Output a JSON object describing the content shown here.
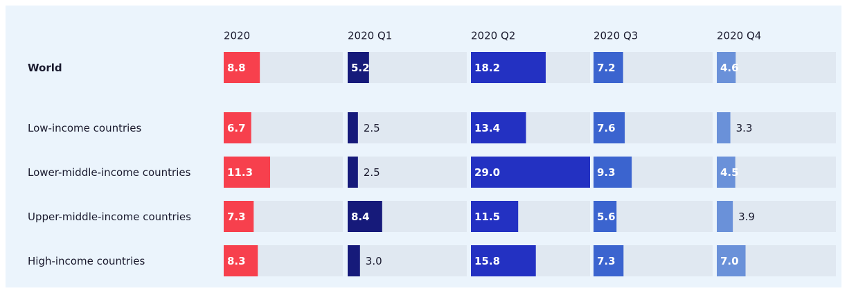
{
  "chart_data": {
    "type": "bar",
    "categories": [
      "World",
      "Low-income countries",
      "Lower-middle-income countries",
      "Upper-middle-income countries",
      "High-income countries"
    ],
    "xlim": [
      0,
      29
    ],
    "series": [
      {
        "name": "2020",
        "color": "#f7404d",
        "values": [
          8.8,
          6.7,
          11.3,
          7.3,
          8.3
        ],
        "value_labels": [
          "8.8",
          "6.7",
          "11.3",
          "7.3",
          "8.3"
        ]
      },
      {
        "name": "2020 Q1",
        "color": "#161a7a",
        "values": [
          5.2,
          2.5,
          2.5,
          8.4,
          3.0
        ],
        "value_labels": [
          "5.2",
          "2.5",
          "2.5",
          "8.4",
          "3.0"
        ]
      },
      {
        "name": "2020 Q2",
        "color": "#2331c2",
        "values": [
          18.2,
          13.4,
          29.0,
          11.5,
          15.8
        ],
        "value_labels": [
          "18.2",
          "13.4",
          "29.0",
          "11.5",
          "15.8"
        ]
      },
      {
        "name": "2020 Q3",
        "color": "#3b64cf",
        "values": [
          7.2,
          7.6,
          9.3,
          5.6,
          7.3
        ],
        "value_labels": [
          "7.2",
          "7.6",
          "9.3",
          "5.6",
          "7.3"
        ]
      },
      {
        "name": "2020 Q4",
        "color": "#6a91d9",
        "values": [
          4.6,
          3.3,
          4.5,
          3.9,
          7.0
        ],
        "value_labels": [
          "4.6",
          "3.3",
          "4.5",
          "3.9",
          "7.0"
        ]
      }
    ]
  }
}
